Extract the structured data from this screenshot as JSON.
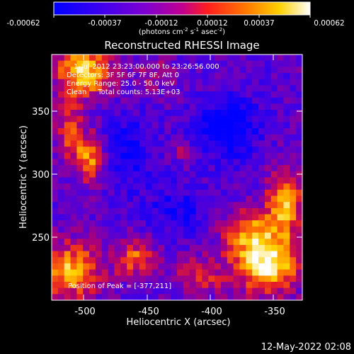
{
  "colorbar": {
    "ticks": [
      "-0.00062",
      "-0.00037",
      "-0.00012",
      "0.00012",
      "0.00037",
      "0.00062"
    ],
    "unit_prefix": "(photons cm",
    "unit_exp1": "-2",
    "unit_mid1": " s",
    "unit_exp2": "-1",
    "unit_mid2": " asec",
    "unit_exp3": "-2",
    "unit_suffix": ")",
    "range": [
      -0.00062,
      0.00062
    ]
  },
  "footer_timestamp": "12-May-2022 02:08",
  "colors": {
    "background": "#000000",
    "palette": [
      "#0000ff",
      "#5a00e6",
      "#a000b4",
      "#e01e3c",
      "#ff6e00",
      "#ffc800",
      "#ffffff"
    ]
  },
  "chart_data": {
    "type": "heatmap",
    "title": "Reconstructed RHESSI Image",
    "xlabel": "Heliocentric X (arcsec)",
    "ylabel": "Heliocentric Y (arcsec)",
    "xlim": [
      -525,
      -330
    ],
    "ylim": [
      200,
      395
    ],
    "x_ticks": [
      "-500",
      "-450",
      "-400",
      "-350"
    ],
    "y_ticks": [
      "250",
      "300",
      "350"
    ],
    "annotations": [
      "1-Jul-2012 23:23:00.000 to 23:26:56.000",
      "Detectors: 3F 5F 6F 7F 8F, Att 0",
      "Energy Range: 25.0 - 50.0 keV",
      "Clean     Total counts: 5.13E+03"
    ],
    "peak_label": "Position of Peak = [-377,211]",
    "peak": [
      -377,
      211
    ],
    "grid": false,
    "colormap_range": [
      -0.00062,
      0.00062
    ]
  }
}
